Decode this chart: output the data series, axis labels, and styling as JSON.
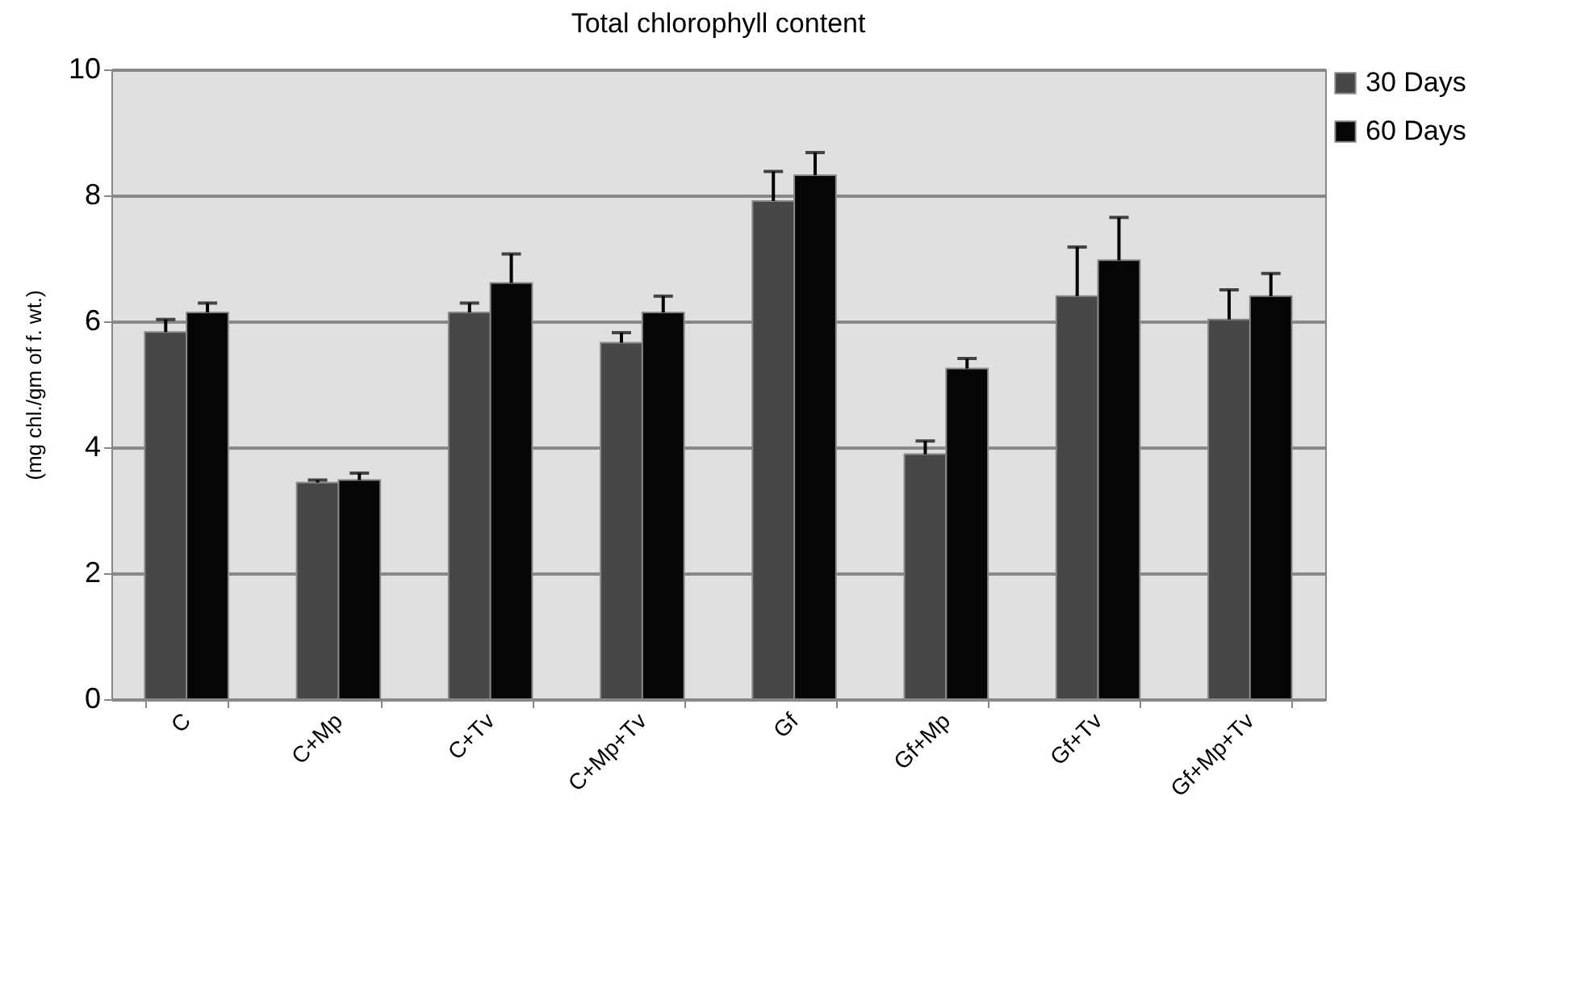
{
  "chart_data": {
    "type": "bar",
    "title": "Total chlorophyll content",
    "ylabel": "(mg chl./gm of f. wt.)",
    "categories": [
      "C",
      "C+Mp",
      "C+Tv",
      "C+Mp+Tv",
      "Gf",
      "Gf+Mp",
      "Gf+Tv",
      "Gf+Mp+Tv"
    ],
    "series": [
      {
        "name": "30 Days",
        "color": "#474747",
        "values": [
          5.83,
          3.44,
          6.14,
          5.66,
          7.91,
          3.89,
          6.4,
          6.03
        ],
        "errors": [
          [
            5.83,
            6.03
          ],
          [
            3.44,
            3.48
          ],
          [
            6.14,
            6.29
          ],
          [
            5.66,
            5.82
          ],
          [
            7.91,
            8.38
          ],
          [
            3.89,
            4.1
          ],
          [
            6.4,
            7.18
          ],
          [
            6.03,
            6.5
          ]
        ]
      },
      {
        "name": "60 Days",
        "color": "#060606",
        "values": [
          6.14,
          3.48,
          6.61,
          6.14,
          8.32,
          5.25,
          6.97,
          6.4
        ],
        "errors": [
          [
            6.14,
            6.29
          ],
          [
            3.48,
            3.59
          ],
          [
            6.61,
            7.07
          ],
          [
            6.14,
            6.4
          ],
          [
            8.32,
            8.68
          ],
          [
            5.25,
            5.41
          ],
          [
            6.97,
            7.65
          ],
          [
            6.4,
            6.76
          ]
        ]
      }
    ],
    "ylim": [
      0,
      10
    ],
    "yticks": [
      0,
      2,
      4,
      6,
      8,
      10
    ],
    "grid": "y",
    "legend": "right"
  }
}
